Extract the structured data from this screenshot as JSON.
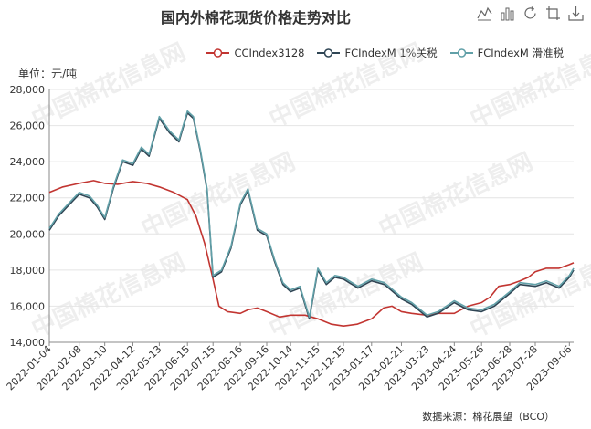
{
  "header": {
    "title": "国内外棉花现货价格走势对比",
    "unit_label": "单位：元/吨",
    "source": "数据来源：棉花展望（BCO）"
  },
  "toolbox": {
    "icons": [
      "line-chart-icon",
      "bar-chart-icon",
      "refresh-icon",
      "restore-icon",
      "download-icon"
    ]
  },
  "chart_data": {
    "type": "line",
    "title": "国内外棉花现货价格走势对比",
    "ylabel": "单位：元/吨",
    "ylim": [
      14000,
      28000
    ],
    "yticks": [
      14000,
      16000,
      18000,
      20000,
      22000,
      24000,
      26000,
      28000
    ],
    "ytick_labels": [
      "14,000",
      "16,000",
      "18,000",
      "20,000",
      "22,000",
      "24,000",
      "26,000",
      "28,000"
    ],
    "xlim": [
      "2022-01-04",
      "2023-09-11"
    ],
    "xtick_labels": [
      "2022-01-04",
      "2022-02-08",
      "2022-03-10",
      "2022-04-12",
      "2022-05-13",
      "2022-06-15",
      "2022-07-15",
      "2022-08-16",
      "2022-09-16",
      "2022-10-14",
      "2022-11-15",
      "2022-12-15",
      "2023-01-17",
      "2023-02-21",
      "2023-03-23",
      "2023-04-24",
      "2023-05-26",
      "2023-06-28",
      "2023-07-28",
      "2023-09-06"
    ],
    "grid": true,
    "legend_position": "top-right",
    "series": [
      {
        "name": "CCIndex3128",
        "color": "#c23531",
        "points": [
          [
            "2022-01-04",
            22300
          ],
          [
            "2022-01-20",
            22600
          ],
          [
            "2022-02-08",
            22800
          ],
          [
            "2022-02-25",
            22950
          ],
          [
            "2022-03-10",
            22800
          ],
          [
            "2022-03-25",
            22750
          ],
          [
            "2022-04-12",
            22900
          ],
          [
            "2022-04-28",
            22800
          ],
          [
            "2022-05-13",
            22600
          ],
          [
            "2022-05-30",
            22300
          ],
          [
            "2022-06-15",
            21900
          ],
          [
            "2022-06-25",
            21000
          ],
          [
            "2022-07-05",
            19500
          ],
          [
            "2022-07-15",
            17500
          ],
          [
            "2022-07-22",
            16000
          ],
          [
            "2022-08-01",
            15700
          ],
          [
            "2022-08-16",
            15600
          ],
          [
            "2022-08-25",
            15800
          ],
          [
            "2022-09-05",
            15900
          ],
          [
            "2022-09-16",
            15700
          ],
          [
            "2022-10-01",
            15400
          ],
          [
            "2022-10-14",
            15500
          ],
          [
            "2022-10-31",
            15500
          ],
          [
            "2022-11-15",
            15300
          ],
          [
            "2022-12-01",
            15000
          ],
          [
            "2022-12-15",
            14900
          ],
          [
            "2022-12-31",
            15000
          ],
          [
            "2023-01-17",
            15300
          ],
          [
            "2023-01-31",
            15900
          ],
          [
            "2023-02-10",
            16000
          ],
          [
            "2023-02-21",
            15700
          ],
          [
            "2023-03-05",
            15600
          ],
          [
            "2023-03-23",
            15500
          ],
          [
            "2023-04-05",
            15600
          ],
          [
            "2023-04-24",
            15600
          ],
          [
            "2023-05-10",
            16000
          ],
          [
            "2023-05-26",
            16200
          ],
          [
            "2023-06-05",
            16500
          ],
          [
            "2023-06-15",
            17100
          ],
          [
            "2023-06-28",
            17200
          ],
          [
            "2023-07-10",
            17400
          ],
          [
            "2023-07-20",
            17600
          ],
          [
            "2023-07-28",
            17900
          ],
          [
            "2023-08-10",
            18100
          ],
          [
            "2023-08-25",
            18100
          ],
          [
            "2023-09-06",
            18300
          ],
          [
            "2023-09-11",
            18400
          ]
        ]
      },
      {
        "name": "FCIndexM 1%关税",
        "color": "#2f4554",
        "points": [
          [
            "2022-01-04",
            20200
          ],
          [
            "2022-01-15",
            21000
          ],
          [
            "2022-01-25",
            21500
          ],
          [
            "2022-02-08",
            22200
          ],
          [
            "2022-02-20",
            22000
          ],
          [
            "2022-03-01",
            21500
          ],
          [
            "2022-03-10",
            20800
          ],
          [
            "2022-03-20",
            22500
          ],
          [
            "2022-03-31",
            24000
          ],
          [
            "2022-04-12",
            23800
          ],
          [
            "2022-04-22",
            24700
          ],
          [
            "2022-05-01",
            24300
          ],
          [
            "2022-05-13",
            26400
          ],
          [
            "2022-05-25",
            25600
          ],
          [
            "2022-06-05",
            25100
          ],
          [
            "2022-06-15",
            26700
          ],
          [
            "2022-06-22",
            26400
          ],
          [
            "2022-06-30",
            24600
          ],
          [
            "2022-07-08",
            22400
          ],
          [
            "2022-07-15",
            17600
          ],
          [
            "2022-07-25",
            17900
          ],
          [
            "2022-08-05",
            19200
          ],
          [
            "2022-08-16",
            21600
          ],
          [
            "2022-08-25",
            22400
          ],
          [
            "2022-09-05",
            20200
          ],
          [
            "2022-09-16",
            19900
          ],
          [
            "2022-09-25",
            18500
          ],
          [
            "2022-10-05",
            17200
          ],
          [
            "2022-10-14",
            16800
          ],
          [
            "2022-10-25",
            17000
          ],
          [
            "2022-11-05",
            15300
          ],
          [
            "2022-11-15",
            18000
          ],
          [
            "2022-11-25",
            17200
          ],
          [
            "2022-12-05",
            17600
          ],
          [
            "2022-12-15",
            17500
          ],
          [
            "2023-01-01",
            17000
          ],
          [
            "2023-01-17",
            17400
          ],
          [
            "2023-02-01",
            17200
          ],
          [
            "2023-02-21",
            16400
          ],
          [
            "2023-03-05",
            16100
          ],
          [
            "2023-03-23",
            15400
          ],
          [
            "2023-04-05",
            15600
          ],
          [
            "2023-04-24",
            16200
          ],
          [
            "2023-05-10",
            15800
          ],
          [
            "2023-05-26",
            15700
          ],
          [
            "2023-06-10",
            16000
          ],
          [
            "2023-06-28",
            16700
          ],
          [
            "2023-07-10",
            17200
          ],
          [
            "2023-07-28",
            17100
          ],
          [
            "2023-08-10",
            17300
          ],
          [
            "2023-08-25",
            17000
          ],
          [
            "2023-09-06",
            17600
          ],
          [
            "2023-09-11",
            18000
          ]
        ]
      },
      {
        "name": "FCIndexM 滑准税",
        "color": "#61a0a8",
        "points": [
          [
            "2022-01-04",
            20300
          ],
          [
            "2022-01-15",
            21100
          ],
          [
            "2022-01-25",
            21600
          ],
          [
            "2022-02-08",
            22300
          ],
          [
            "2022-02-20",
            22100
          ],
          [
            "2022-03-01",
            21600
          ],
          [
            "2022-03-10",
            20900
          ],
          [
            "2022-03-20",
            22600
          ],
          [
            "2022-03-31",
            24100
          ],
          [
            "2022-04-12",
            23900
          ],
          [
            "2022-04-22",
            24800
          ],
          [
            "2022-05-01",
            24400
          ],
          [
            "2022-05-13",
            26500
          ],
          [
            "2022-05-25",
            25700
          ],
          [
            "2022-06-05",
            25200
          ],
          [
            "2022-06-15",
            26800
          ],
          [
            "2022-06-22",
            26500
          ],
          [
            "2022-06-30",
            24700
          ],
          [
            "2022-07-08",
            22500
          ],
          [
            "2022-07-15",
            17700
          ],
          [
            "2022-07-25",
            18000
          ],
          [
            "2022-08-05",
            19300
          ],
          [
            "2022-08-16",
            21700
          ],
          [
            "2022-08-25",
            22500
          ],
          [
            "2022-09-05",
            20300
          ],
          [
            "2022-09-16",
            20000
          ],
          [
            "2022-09-25",
            18600
          ],
          [
            "2022-10-05",
            17300
          ],
          [
            "2022-10-14",
            16900
          ],
          [
            "2022-10-25",
            17100
          ],
          [
            "2022-11-05",
            15400
          ],
          [
            "2022-11-15",
            18100
          ],
          [
            "2022-11-25",
            17300
          ],
          [
            "2022-12-05",
            17700
          ],
          [
            "2022-12-15",
            17600
          ],
          [
            "2023-01-01",
            17100
          ],
          [
            "2023-01-17",
            17500
          ],
          [
            "2023-02-01",
            17300
          ],
          [
            "2023-02-21",
            16500
          ],
          [
            "2023-03-05",
            16200
          ],
          [
            "2023-03-23",
            15500
          ],
          [
            "2023-04-05",
            15700
          ],
          [
            "2023-04-24",
            16300
          ],
          [
            "2023-05-10",
            15900
          ],
          [
            "2023-05-26",
            15800
          ],
          [
            "2023-06-10",
            16100
          ],
          [
            "2023-06-28",
            16800
          ],
          [
            "2023-07-10",
            17300
          ],
          [
            "2023-07-28",
            17200
          ],
          [
            "2023-08-10",
            17400
          ],
          [
            "2023-08-25",
            17100
          ],
          [
            "2023-09-06",
            17700
          ],
          [
            "2023-09-11",
            18100
          ]
        ]
      }
    ]
  }
}
